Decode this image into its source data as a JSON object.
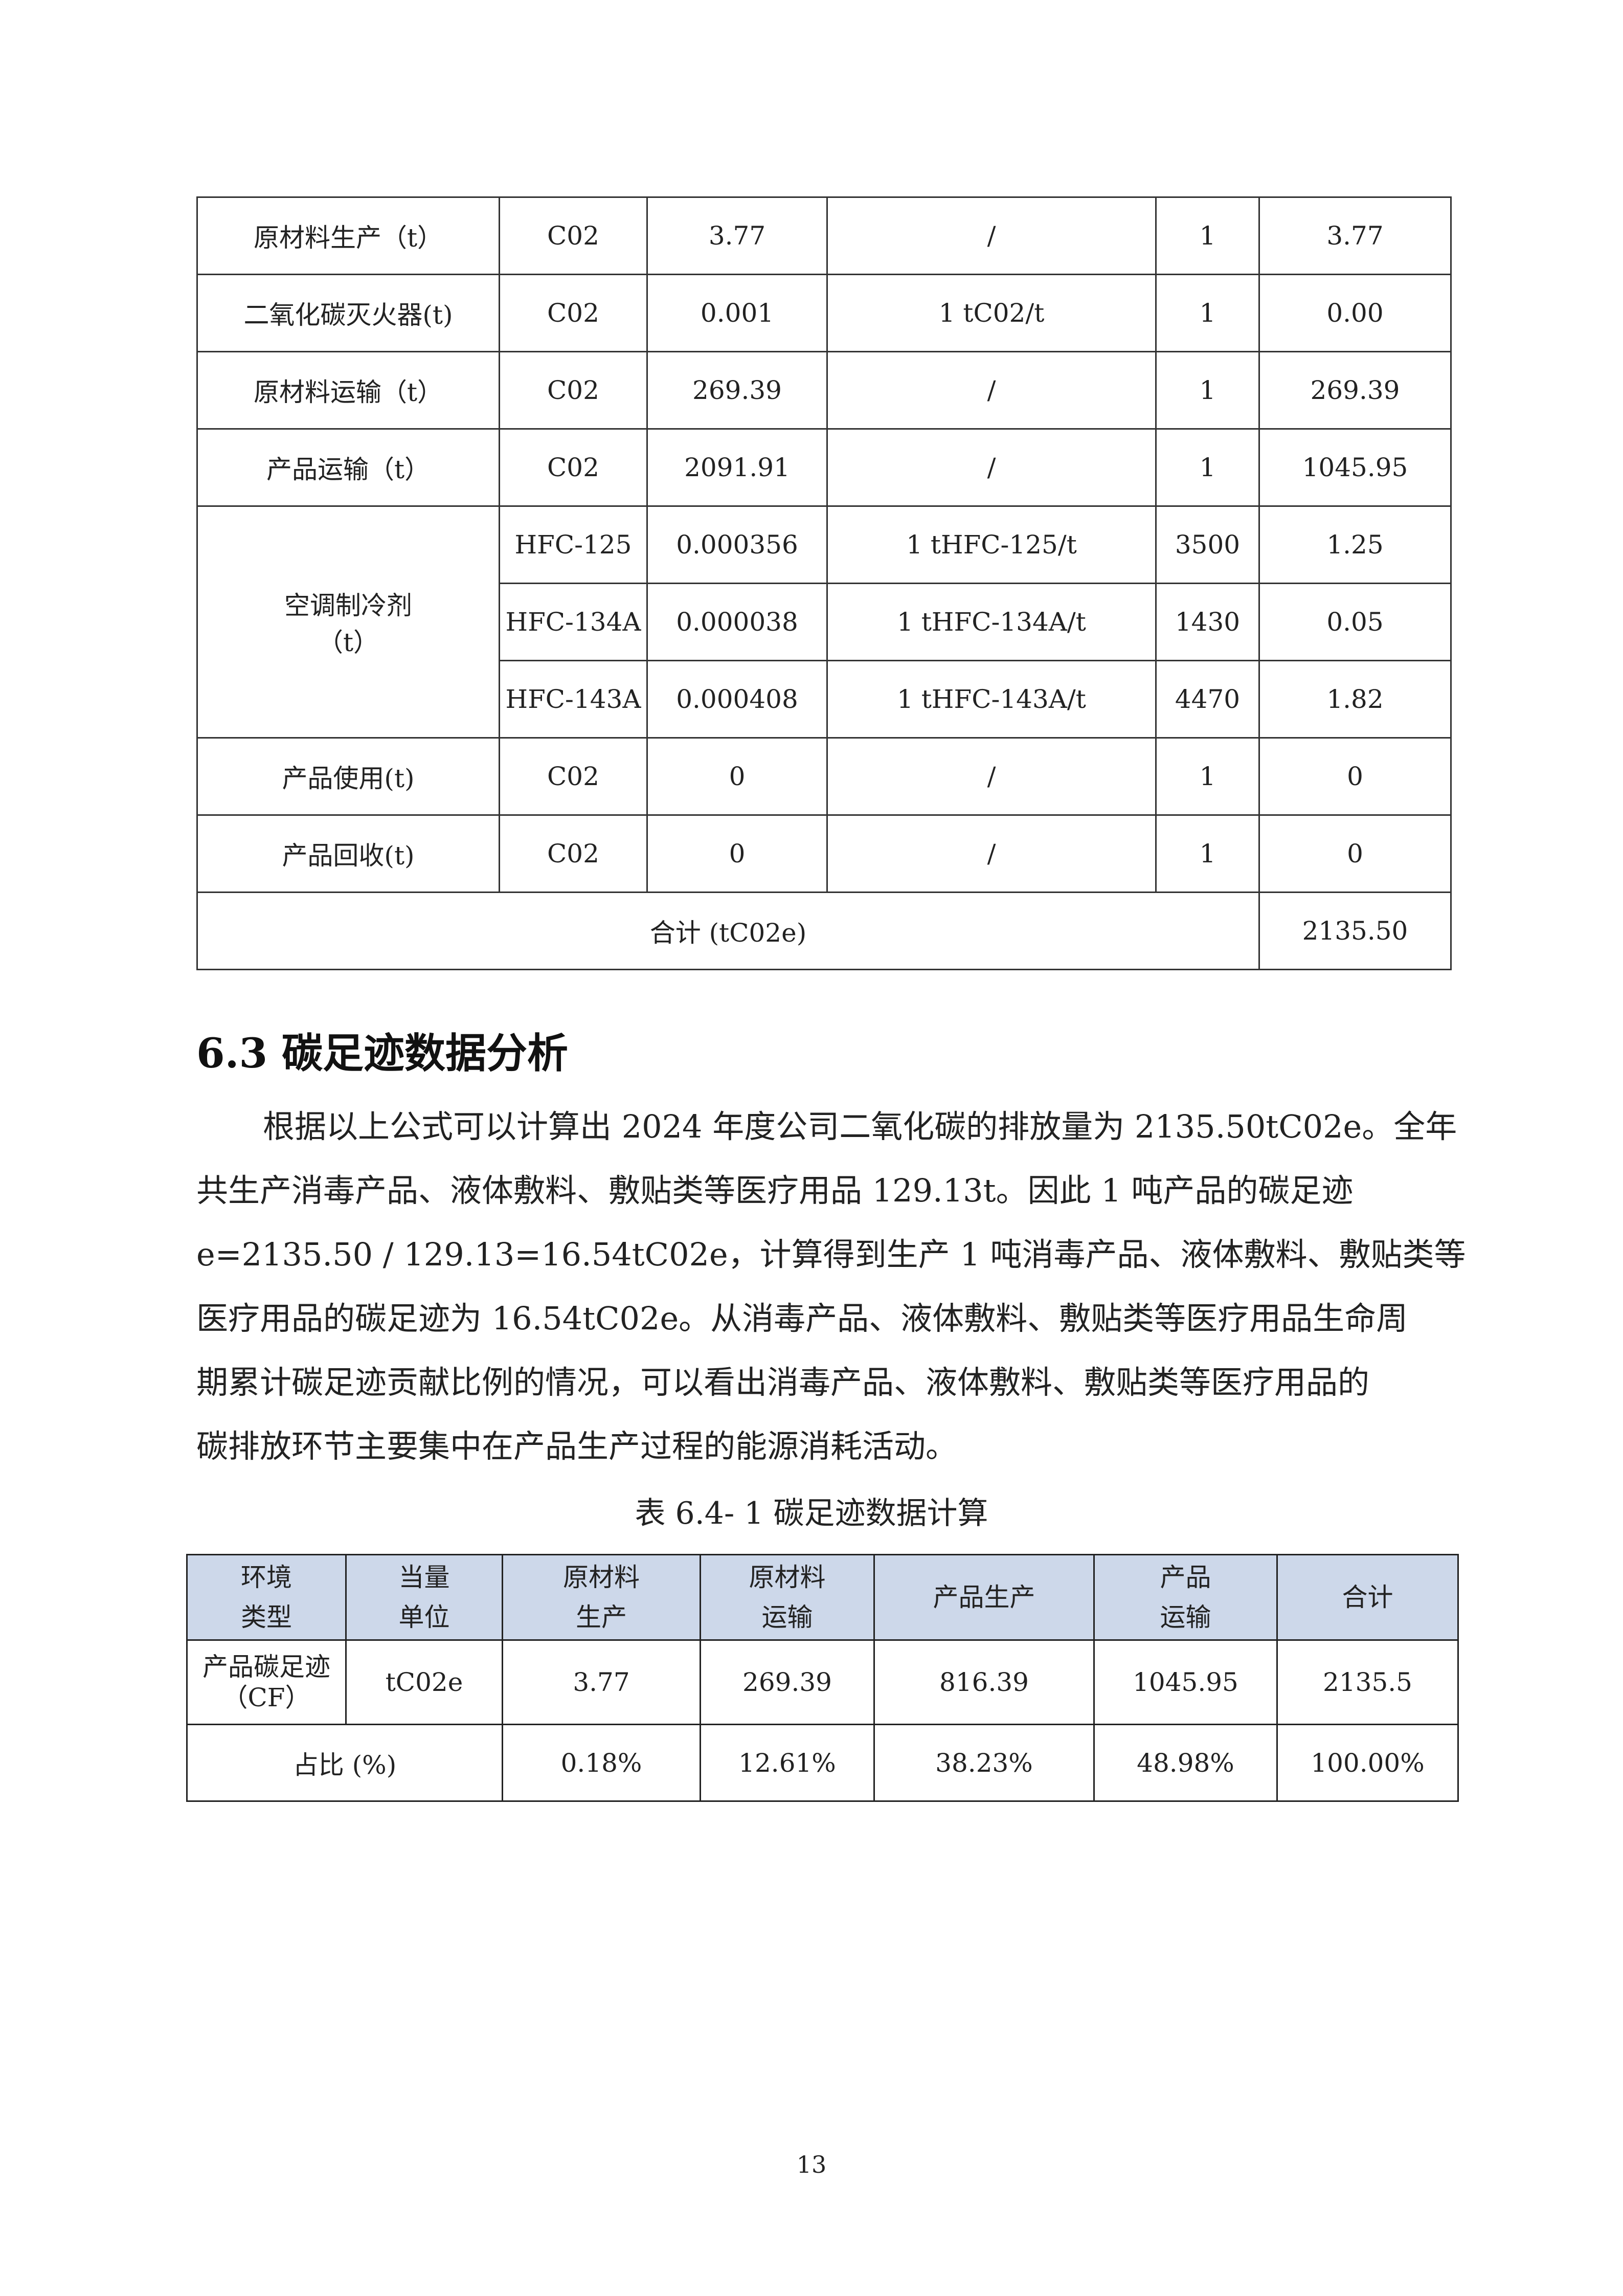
{
  "table1": {
    "rows": [
      [
        "原材料生产（t）",
        "C02",
        "3.77",
        "/",
        "1",
        "3.77"
      ],
      [
        "二氧化碳灭火器(t)",
        "C02",
        "0.001",
        "1 tC02/t",
        "1",
        "0.00"
      ],
      [
        "原材料运输（t）",
        "C02",
        "269.39",
        "/",
        "1",
        "269.39"
      ],
      [
        "产品运输（t）",
        "C02",
        "2091.91",
        "/",
        "1",
        "1045.95"
      ]
    ],
    "refrigerant": {
      "label_line1": "空调制冷剂",
      "label_line2": "（t）",
      "rows": [
        [
          "HFC-125",
          "0.000356",
          "1 tHFC-125/t",
          "3500",
          "1.25"
        ],
        [
          "HFC-134A",
          "0.000038",
          "1 tHFC-134A/t",
          "1430",
          "0.05"
        ],
        [
          "HFC-143A",
          "0.000408",
          "1 tHFC-143A/t",
          "4470",
          "1.82"
        ]
      ]
    },
    "rows_after": [
      [
        "产品使用(t)",
        "C02",
        "0",
        "/",
        "1",
        "0"
      ],
      [
        "产品回收(t)",
        "C02",
        "0",
        "/",
        "1",
        "0"
      ]
    ],
    "total_label": "合计 (tC02e)",
    "total_value": "2135.50"
  },
  "section": {
    "heading": "6.3 碳足迹数据分析",
    "paragraph_lines": [
      "根据以上公式可以计算出 2024 年度公司二氧化碳的排放量为 2135.50tC02e。全年",
      "共生产消毒产品、液体敷料、敷贴类等医疗用品 129.13t。因此 1 吨产品的碳足迹",
      "e=2135.50 / 129.13=16.54tC02e，计算得到生产 1 吨消毒产品、液体敷料、敷贴类等",
      "医疗用品的碳足迹为 16.54tC02e。从消毒产品、液体敷料、敷贴类等医疗用品生命周",
      "期累计碳足迹贡献比例的情况，可以看出消毒产品、液体敷料、敷贴类等医疗用品的",
      "碳排放环节主要集中在产品生产过程的能源消耗活动。"
    ]
  },
  "table2": {
    "caption": "表 6.4- 1 碳足迹数据计算",
    "header_color": "#cdd8ea",
    "headers": [
      [
        "环境",
        "类型"
      ],
      [
        "当量",
        "单位"
      ],
      [
        "原材料",
        "生产"
      ],
      [
        "原材料",
        "运输"
      ],
      [
        "产品生产"
      ],
      [
        "产品",
        "运输"
      ],
      [
        "合计"
      ]
    ],
    "cf_row": {
      "label_line1": "产品碳足迹",
      "label_line2": "（CF）",
      "unit": "tC02e",
      "values": [
        "3.77",
        "269.39",
        "816.39",
        "1045.95",
        "2135.5"
      ]
    },
    "share_row": {
      "label": "占比 (%)",
      "values": [
        "0.18%",
        "12.61%",
        "38.23%",
        "48.98%",
        "100.00%"
      ]
    }
  },
  "page_number": "13"
}
